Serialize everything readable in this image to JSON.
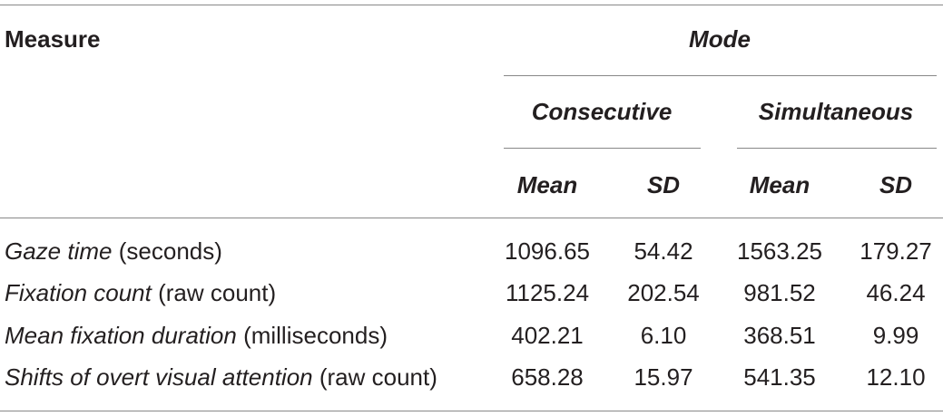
{
  "header": {
    "measure": "Measure",
    "mode": "Mode",
    "groups": [
      "Consecutive",
      "Simultaneous"
    ],
    "stats": [
      "Mean",
      "SD",
      "Mean",
      "SD"
    ]
  },
  "table": {
    "rows": [
      {
        "term": "Gaze time",
        "unit": "(seconds)",
        "cells": [
          "1096.65",
          "54.42",
          "1563.25",
          "179.27"
        ]
      },
      {
        "term": "Fixation count",
        "unit": "(raw count)",
        "cells": [
          "1125.24",
          "202.54",
          "981.52",
          "46.24"
        ]
      },
      {
        "term": "Mean fixation duration",
        "unit": "(milliseconds)",
        "cells": [
          "402.21",
          "6.10",
          "368.51",
          "9.99"
        ]
      },
      {
        "term": "Shifts of overt visual attention",
        "unit": "(raw count)",
        "cells": [
          "658.28",
          "15.97",
          "541.35",
          "12.10"
        ]
      }
    ]
  }
}
